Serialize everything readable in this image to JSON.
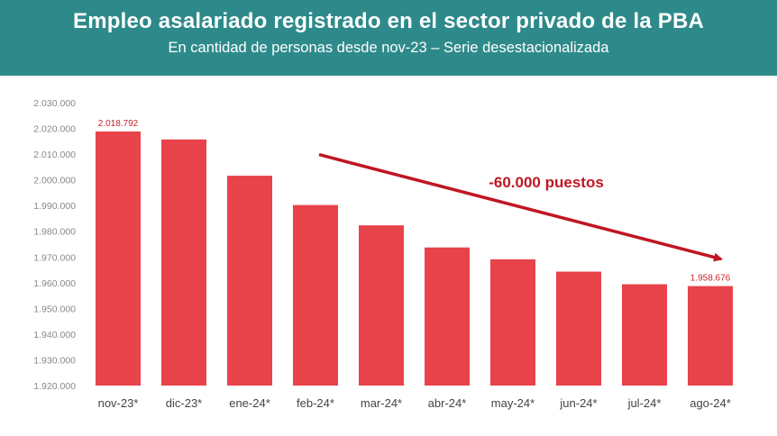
{
  "header": {
    "title": "Empleo asalariado registrado en el sector privado de la PBA",
    "subtitle": "En cantidad de personas desde nov-23 – Serie desestacionalizada"
  },
  "colors": {
    "header_bg": "#2e8a8a",
    "bar": "#e8424b",
    "arrow": "#c01622",
    "data_label": "#c9252f"
  },
  "chart_data": {
    "type": "bar",
    "title": "Empleo asalariado registrado en el sector privado de la PBA",
    "subtitle": "En cantidad de personas desde nov-23 – Serie desestacionalizada",
    "categories": [
      "nov-23*",
      "dic-23*",
      "ene-24*",
      "feb-24*",
      "mar-24*",
      "abr-24*",
      "may-24*",
      "jun-24*",
      "jul-24*",
      "ago-24*"
    ],
    "values": [
      2018792,
      2015700,
      2001600,
      1990200,
      1982300,
      1973700,
      1969100,
      1964300,
      1959400,
      1958676
    ],
    "ylim": [
      1920000,
      2030000
    ],
    "yticks": [
      1920000,
      1930000,
      1940000,
      1950000,
      1960000,
      1970000,
      1980000,
      1990000,
      2000000,
      2010000,
      2020000,
      2030000
    ],
    "ytick_labels": [
      "1.920.000",
      "1.930.000",
      "1.940.000",
      "1.950.000",
      "1.960.000",
      "1.970.000",
      "1.980.000",
      "1.990.000",
      "2.000.000",
      "2.010.000",
      "2.020.000",
      "2.030.000"
    ],
    "data_labels": [
      {
        "category": "nov-23*",
        "text": "2.018.792"
      },
      {
        "category": "ago-24*",
        "text": "1.958.676"
      }
    ],
    "annotation": {
      "text": "-60.000 puestos",
      "from": "feb-24*",
      "to": "ago-24*"
    },
    "grid": false,
    "legend": "none"
  }
}
